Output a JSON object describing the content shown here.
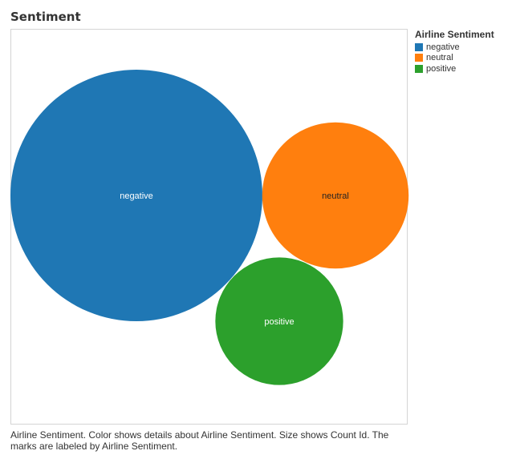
{
  "chart_data": {
    "type": "bubble",
    "title": "Sentiment",
    "legend": {
      "title": "Airline Sentiment",
      "placement": "right",
      "items": [
        {
          "label": "negative",
          "color": "#1f77b4"
        },
        {
          "label": "neutral",
          "color": "#ff7f0e"
        },
        {
          "label": "positive",
          "color": "#2ca02c"
        }
      ]
    },
    "series": [
      {
        "category": "negative",
        "relative_size": 9178,
        "color": "#1f77b4",
        "label_color": "#ffffff"
      },
      {
        "category": "neutral",
        "relative_size": 3099,
        "color": "#ff7f0e",
        "label_color": "#222222"
      },
      {
        "category": "positive",
        "relative_size": 2363,
        "color": "#2ca02c",
        "label_color": "#ffffff"
      }
    ],
    "caption": "Airline Sentiment.  Color shows details about Airline Sentiment.  Size shows Count Id.  The marks are labeled by Airline Sentiment."
  }
}
